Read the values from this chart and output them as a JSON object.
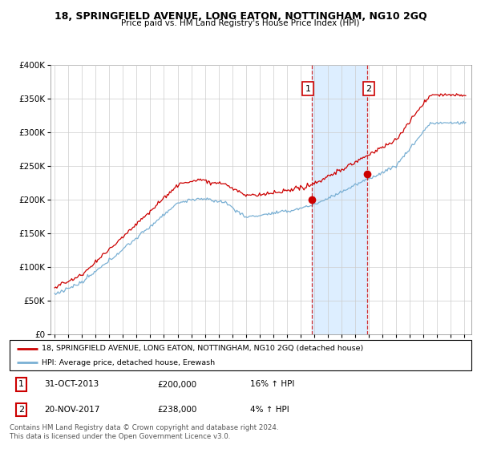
{
  "title": "18, SPRINGFIELD AVENUE, LONG EATON, NOTTINGHAM, NG10 2GQ",
  "subtitle": "Price paid vs. HM Land Registry's House Price Index (HPI)",
  "legend_label_red": "18, SPRINGFIELD AVENUE, LONG EATON, NOTTINGHAM, NG10 2GQ (detached house)",
  "legend_label_blue": "HPI: Average price, detached house, Erewash",
  "sale1_date": "31-OCT-2013",
  "sale1_price": "£200,000",
  "sale1_hpi": "16% ↑ HPI",
  "sale1_year": 2013.83,
  "sale1_value": 200000,
  "sale2_date": "20-NOV-2017",
  "sale2_price": "£238,000",
  "sale2_hpi": "4% ↑ HPI",
  "sale2_year": 2017.88,
  "sale2_value": 238000,
  "ylim": [
    0,
    400000
  ],
  "xlim_start": 1994.7,
  "xlim_end": 2025.5,
  "footer": "Contains HM Land Registry data © Crown copyright and database right 2024.\nThis data is licensed under the Open Government Licence v3.0.",
  "shade_start": 2013.83,
  "shade_end": 2017.88,
  "red_color": "#cc0000",
  "blue_color": "#7ab0d4",
  "shade_color": "#ddeeff",
  "grid_color": "#cccccc",
  "title_fontsize": 9,
  "subtitle_fontsize": 8
}
